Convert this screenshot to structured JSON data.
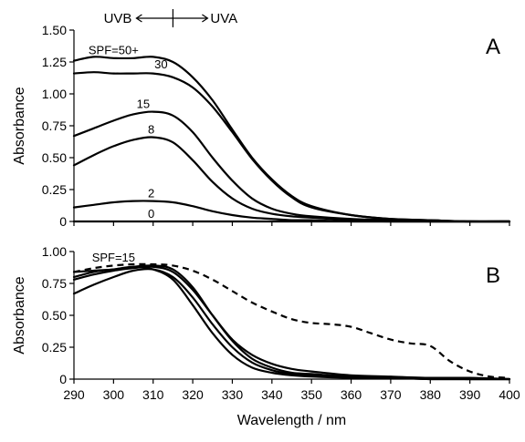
{
  "chart_data": [
    {
      "type": "line",
      "panel_label": "A",
      "ylabel": "Absorbance",
      "xlabel": "",
      "ylim": [
        0,
        1.5
      ],
      "xlim": [
        290,
        400
      ],
      "y_ticks": [
        "0",
        "0.25",
        "0.50",
        "0.75",
        "1.00",
        "1.25",
        "1.50"
      ],
      "y_tick_values": [
        0,
        0.25,
        0.5,
        0.75,
        1.0,
        1.25,
        1.5
      ],
      "header": {
        "left": "UVB",
        "right": "UVA",
        "boundary_x": 315
      },
      "series": [
        {
          "name": "SPF=50+",
          "x": [
            290,
            295,
            300,
            305,
            310,
            315,
            320,
            325,
            330,
            335,
            340,
            345,
            350,
            360,
            370,
            380,
            390,
            400
          ],
          "values": [
            1.26,
            1.29,
            1.28,
            1.28,
            1.29,
            1.25,
            1.13,
            0.95,
            0.72,
            0.5,
            0.33,
            0.2,
            0.12,
            0.05,
            0.02,
            0.01,
            0.0,
            0.0
          ]
        },
        {
          "name": "30",
          "x": [
            290,
            295,
            300,
            305,
            310,
            315,
            320,
            325,
            330,
            335,
            340,
            345,
            350,
            360,
            370,
            380,
            390,
            400
          ],
          "values": [
            1.16,
            1.17,
            1.16,
            1.16,
            1.16,
            1.13,
            1.05,
            0.9,
            0.7,
            0.49,
            0.32,
            0.19,
            0.11,
            0.05,
            0.02,
            0.01,
            0.0,
            0.0
          ]
        },
        {
          "name": "15",
          "x": [
            290,
            295,
            300,
            305,
            310,
            315,
            320,
            325,
            330,
            335,
            340,
            345,
            350,
            360,
            370,
            380,
            390,
            400
          ],
          "values": [
            0.67,
            0.73,
            0.79,
            0.84,
            0.86,
            0.83,
            0.7,
            0.5,
            0.32,
            0.18,
            0.1,
            0.06,
            0.04,
            0.02,
            0.01,
            0.0,
            0.0,
            0.0
          ]
        },
        {
          "name": "8",
          "x": [
            290,
            295,
            300,
            305,
            310,
            315,
            320,
            325,
            330,
            335,
            340,
            345,
            350,
            360,
            370,
            380,
            390,
            400
          ],
          "values": [
            0.44,
            0.52,
            0.59,
            0.64,
            0.66,
            0.62,
            0.48,
            0.31,
            0.18,
            0.1,
            0.06,
            0.04,
            0.03,
            0.01,
            0.0,
            0.0,
            0.0,
            0.0
          ]
        },
        {
          "name": "2",
          "x": [
            290,
            295,
            300,
            305,
            310,
            315,
            320,
            325,
            330,
            335,
            340,
            345,
            350,
            360,
            370,
            380,
            390,
            400
          ],
          "values": [
            0.11,
            0.13,
            0.15,
            0.16,
            0.16,
            0.15,
            0.12,
            0.08,
            0.05,
            0.03,
            0.02,
            0.01,
            0.01,
            0.0,
            0.0,
            0.0,
            0.0,
            0.0
          ]
        },
        {
          "name": "0",
          "x": [
            290,
            400
          ],
          "values": [
            0.0,
            0.0
          ]
        }
      ],
      "label_positions": [
        {
          "text": "SPF=50+",
          "x": 300,
          "y": 1.31
        },
        {
          "text": "30",
          "x": 312,
          "y": 1.2
        },
        {
          "text": "15",
          "x": 307.5,
          "y": 0.89
        },
        {
          "text": "8",
          "x": 309.5,
          "y": 0.69
        },
        {
          "text": "2",
          "x": 309.5,
          "y": 0.19
        },
        {
          "text": "0",
          "x": 309.5,
          "y": 0.03
        }
      ]
    },
    {
      "type": "line",
      "panel_label": "B",
      "ylabel": "Absorbance",
      "xlabel": "Wavelength / nm",
      "ylim": [
        0,
        1.0
      ],
      "xlim": [
        290,
        400
      ],
      "y_ticks": [
        "0",
        "0.25",
        "0.50",
        "0.75",
        "1.00"
      ],
      "y_tick_values": [
        0,
        0.25,
        0.5,
        0.75,
        1.0
      ],
      "x_ticks": [
        "290",
        "300",
        "310",
        "320",
        "330",
        "340",
        "350",
        "360",
        "370",
        "380",
        "390",
        "400"
      ],
      "x_tick_values": [
        290,
        300,
        310,
        320,
        330,
        340,
        350,
        360,
        370,
        380,
        390,
        400
      ],
      "series": [
        {
          "name": "SPF=15",
          "x": [
            290,
            295,
            300,
            305,
            310,
            315,
            320,
            325,
            330,
            335,
            340,
            345,
            350,
            360,
            370,
            380,
            390,
            400
          ],
          "values": [
            0.67,
            0.74,
            0.8,
            0.85,
            0.86,
            0.8,
            0.64,
            0.43,
            0.25,
            0.13,
            0.07,
            0.04,
            0.03,
            0.01,
            0.01,
            0.0,
            0.0,
            0.0
          ]
        },
        {
          "x": [
            290,
            295,
            300,
            305,
            310,
            315,
            320,
            325,
            330,
            335,
            340,
            345,
            350,
            360,
            370,
            380,
            390,
            400
          ],
          "values": [
            0.78,
            0.82,
            0.85,
            0.87,
            0.88,
            0.84,
            0.7,
            0.5,
            0.31,
            0.19,
            0.12,
            0.08,
            0.06,
            0.03,
            0.02,
            0.01,
            0.01,
            0.0
          ]
        },
        {
          "x": [
            290,
            295,
            300,
            305,
            310,
            315,
            320,
            325,
            330,
            335,
            340,
            345,
            350,
            360,
            370,
            380,
            390,
            400
          ],
          "values": [
            0.84,
            0.85,
            0.86,
            0.88,
            0.89,
            0.86,
            0.72,
            0.5,
            0.3,
            0.16,
            0.09,
            0.05,
            0.04,
            0.02,
            0.01,
            0.01,
            0.0,
            0.0
          ]
        },
        {
          "x": [
            290,
            295,
            300,
            305,
            310,
            315,
            320,
            325,
            330,
            335,
            340,
            345,
            350,
            360,
            370,
            380,
            390,
            400
          ],
          "values": [
            0.8,
            0.84,
            0.86,
            0.88,
            0.86,
            0.78,
            0.58,
            0.36,
            0.19,
            0.09,
            0.05,
            0.03,
            0.02,
            0.01,
            0.01,
            0.0,
            0.0,
            0.0
          ]
        },
        {
          "x": [
            290,
            295,
            300,
            305,
            310,
            315,
            320,
            325,
            330,
            335,
            340,
            345,
            350,
            355,
            360,
            365,
            370,
            375,
            380,
            385,
            390,
            395,
            400
          ],
          "values": [
            0.84,
            0.87,
            0.89,
            0.9,
            0.9,
            0.89,
            0.85,
            0.78,
            0.69,
            0.6,
            0.53,
            0.47,
            0.44,
            0.43,
            0.41,
            0.36,
            0.31,
            0.28,
            0.26,
            0.14,
            0.06,
            0.02,
            0.01
          ],
          "dashed": true
        }
      ],
      "label_positions": [
        {
          "text": "SPF=15",
          "x": 300,
          "y": 0.92
        }
      ]
    }
  ]
}
